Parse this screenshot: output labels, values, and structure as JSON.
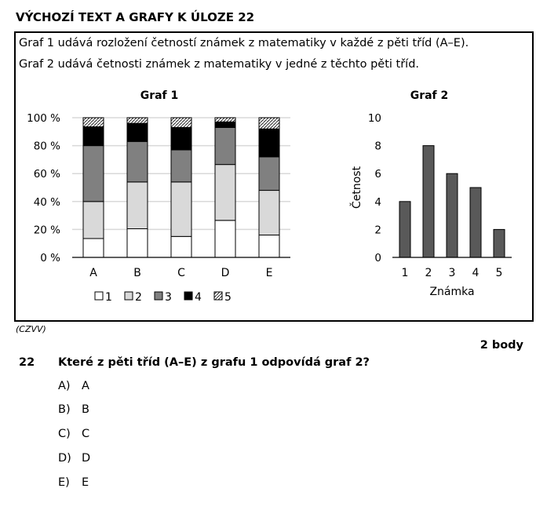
{
  "heading": "VÝCHOZÍ TEXT A GRAFY K ÚLOZE 22",
  "intro": [
    "Graf 1 udává rozložení četností známek z matematiky v každé z pěti tříd (A–E).",
    "Graf 2 udává četnosti známek z matematiky v jedné z těchto pěti tříd."
  ],
  "source": "(CZVV)",
  "points": "2 body",
  "question": {
    "number": "22",
    "text": "Které z pěti tříd (A–E) z grafu 1 odpovídá graf 2?",
    "options": [
      {
        "key": "A)",
        "label": "A"
      },
      {
        "key": "B)",
        "label": "B"
      },
      {
        "key": "C)",
        "label": "C"
      },
      {
        "key": "D)",
        "label": "D"
      },
      {
        "key": "E)",
        "label": "E"
      }
    ]
  },
  "chart_data": [
    {
      "type": "bar",
      "stacked": true,
      "title": "Graf 1",
      "categories": [
        "A",
        "B",
        "C",
        "D",
        "E"
      ],
      "yticks": [
        "0 %",
        "20 %",
        "40 %",
        "60 %",
        "80 %",
        "100 %"
      ],
      "ylim": [
        0,
        100
      ],
      "legend_position": "bottom",
      "series": [
        {
          "name": "1",
          "values": [
            13.5,
            20.5,
            15,
            26.5,
            16
          ],
          "fill": "#ffffff"
        },
        {
          "name": "2",
          "values": [
            26.5,
            33.5,
            39,
            40,
            32
          ],
          "fill": "#d9d9d9"
        },
        {
          "name": "3",
          "values": [
            40,
            29,
            23,
            26.5,
            24
          ],
          "fill": "#808080"
        },
        {
          "name": "4",
          "values": [
            13.5,
            13,
            16,
            4,
            20
          ],
          "fill": "#000000"
        },
        {
          "name": "5",
          "values": [
            6.5,
            4,
            7,
            3,
            8
          ],
          "fill": "hatch"
        }
      ]
    },
    {
      "type": "bar",
      "title": "Graf 2",
      "xlabel": "Známka",
      "ylabel": "Četnost",
      "categories": [
        "1",
        "2",
        "3",
        "4",
        "5"
      ],
      "values": [
        4,
        8,
        6,
        5,
        2
      ],
      "yticks": [
        "0",
        "2",
        "4",
        "6",
        "8",
        "10"
      ],
      "ylim": [
        0,
        10
      ],
      "color": "#595959"
    }
  ]
}
